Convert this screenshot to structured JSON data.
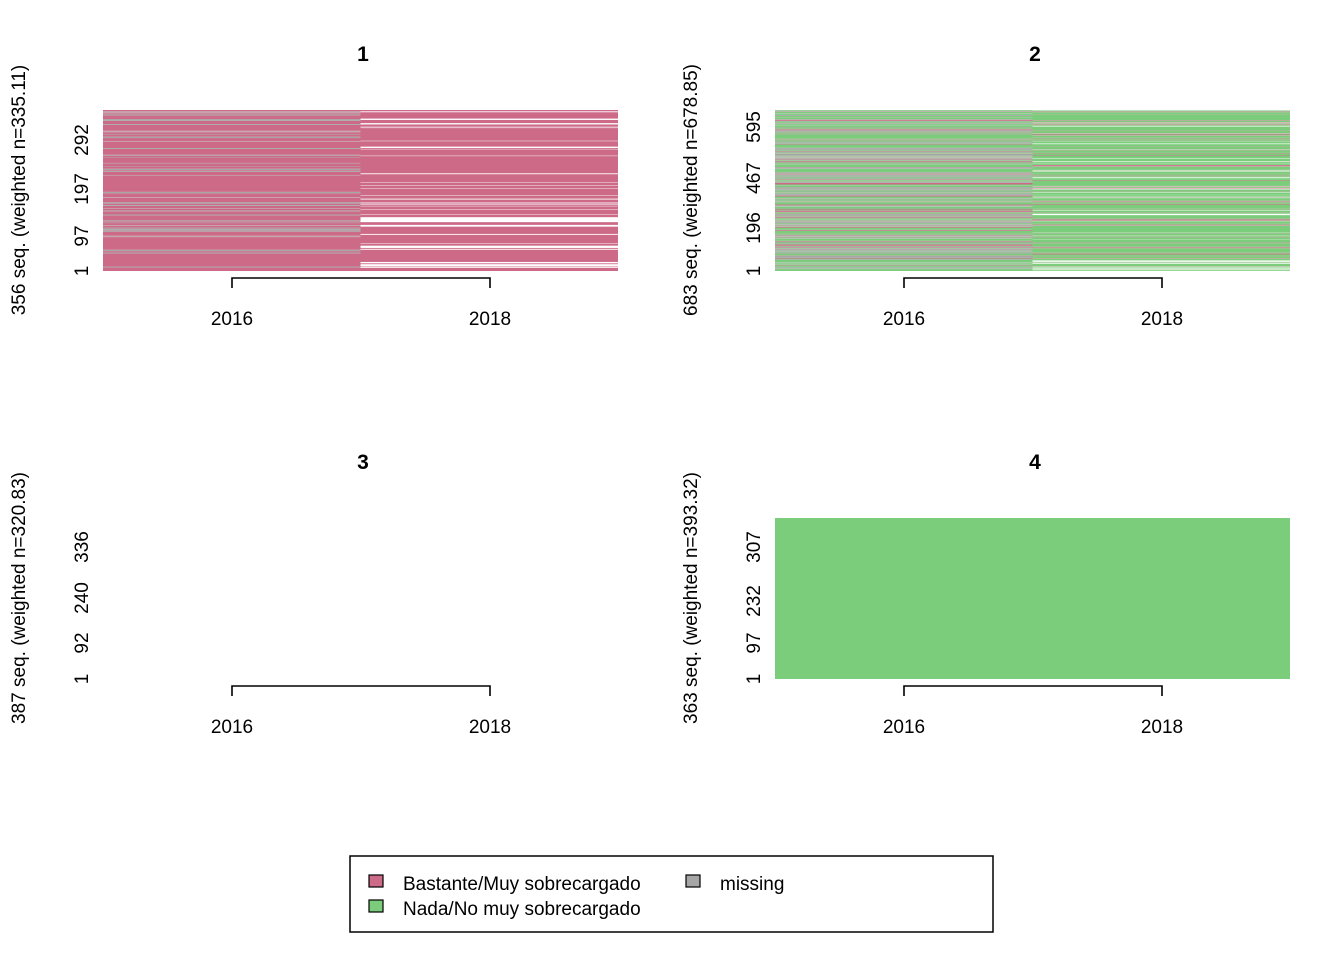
{
  "chart_data": [
    {
      "type": "sequence_index_plot",
      "title": "1",
      "ylabel": "356 seq. (weighted n=335.11)",
      "yticks": [
        "1",
        "97",
        "197",
        "292"
      ],
      "xticks": [
        "2016",
        "2018"
      ],
      "periods": [
        "2016",
        "2018"
      ],
      "n_sequences": 356,
      "composition": [
        {
          "Bastante/Muy sobrecargado": 0.8,
          "Nada/No muy sobrecargado": 0,
          "missing": 0.2
        },
        {
          "Bastante/Muy sobrecargado": 0.87,
          "Nada/No muy sobrecargado": 0,
          "missing": 0
        }
      ]
    },
    {
      "type": "sequence_index_plot",
      "title": "2",
      "ylabel": "683 seq. (weighted n=678.85)",
      "yticks": [
        "1",
        "196",
        "467",
        "595"
      ],
      "xticks": [
        "2016",
        "2018"
      ],
      "periods": [
        "2016",
        "2018"
      ],
      "n_sequences": 683,
      "composition": [
        {
          "Bastante/Muy sobrecargado": 0.12,
          "Nada/No muy sobrecargado": 0.55,
          "missing": 0.33
        },
        {
          "Bastante/Muy sobrecargado": 0.15,
          "Nada/No muy sobrecargado": 0.75,
          "missing": 0
        }
      ]
    },
    {
      "type": "sequence_index_plot",
      "title": "3",
      "ylabel": "387 seq. (weighted n=320.83)",
      "yticks": [
        "1",
        "92",
        "240",
        "336"
      ],
      "xticks": [
        "2016",
        "2018"
      ],
      "periods": [
        "2016",
        "2018"
      ],
      "n_sequences": 387,
      "composition": [
        {
          "Bastante/Muy sobrecargado": 0,
          "Nada/No muy sobrecargado": 0,
          "missing": 0
        },
        {
          "Bastante/Muy sobrecargado": 0,
          "Nada/No muy sobrecargado": 0,
          "missing": 0
        }
      ]
    },
    {
      "type": "sequence_index_plot",
      "title": "4",
      "ylabel": "363 seq. (weighted n=393.32)",
      "yticks": [
        "1",
        "97",
        "232",
        "307"
      ],
      "xticks": [
        "2016",
        "2018"
      ],
      "periods": [
        "2016",
        "2018"
      ],
      "n_sequences": 363,
      "composition": [
        {
          "Bastante/Muy sobrecargado": 0,
          "Nada/No muy sobrecargado": 1,
          "missing": 0
        },
        {
          "Bastante/Muy sobrecargado": 0,
          "Nada/No muy sobrecargado": 1,
          "missing": 0
        }
      ]
    }
  ],
  "legend": {
    "position": "bottom-center",
    "items": [
      {
        "label": "Bastante/Muy sobrecargado",
        "color": "#CC6A88"
      },
      {
        "label": "missing",
        "color": "#A6A6A6"
      },
      {
        "label": "Nada/No muy sobrecargado",
        "color": "#7BCD7B"
      }
    ]
  },
  "colors": {
    "Bastante/Muy sobrecargado": "#CC6A88",
    "Nada/No muy sobrecargado": "#7BCD7B",
    "missing": "#A6A6A6"
  }
}
